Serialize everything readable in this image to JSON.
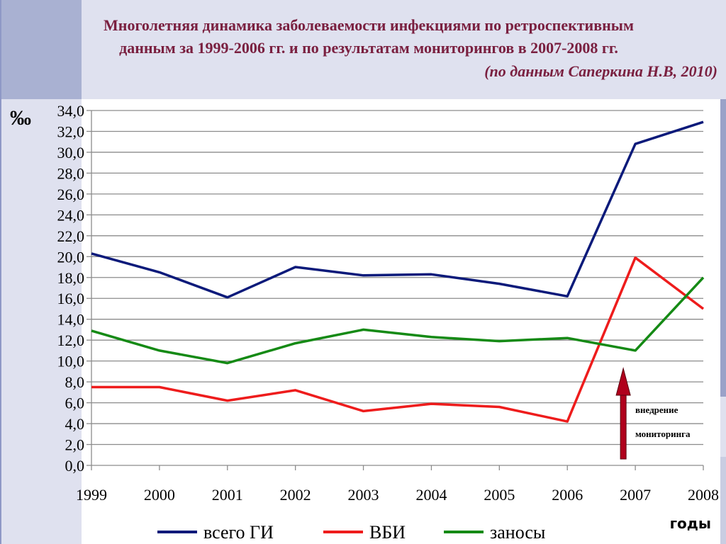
{
  "title_line1": "Многолетняя динамика заболеваемости инфекциями по ретроспективным",
  "title_line2": "данным за 1999-2006 гг. и по результатам мониторингов в 2007-2008 гг.",
  "source": "(по данным Саперкина Н.В, 2010)",
  "chart_data": {
    "type": "line",
    "ylabel": "‰",
    "xlabel": "годы",
    "ylim": [
      0,
      34
    ],
    "y_tick_step": 2,
    "grid": true,
    "legend_position": "bottom",
    "x": [
      "1999",
      "2000",
      "2001",
      "2002",
      "2003",
      "2004",
      "2005",
      "2006",
      "2007",
      "2008"
    ],
    "series": [
      {
        "name": "всего ГИ",
        "color": "#0b1a7a",
        "values": [
          20.3,
          18.5,
          16.1,
          19.0,
          18.2,
          18.3,
          17.4,
          16.2,
          30.8,
          32.9
        ]
      },
      {
        "name": "ВБИ",
        "color": "#ee1c1c",
        "values": [
          7.5,
          7.5,
          6.2,
          7.2,
          5.2,
          5.9,
          5.6,
          4.2,
          19.9,
          15.0
        ]
      },
      {
        "name": "заносы",
        "color": "#158a15",
        "values": [
          12.9,
          11.0,
          9.8,
          11.7,
          13.0,
          12.3,
          11.9,
          12.2,
          11.0,
          18.0
        ]
      }
    ],
    "annotation": {
      "line1": "внедрение",
      "line2": "мониторинга",
      "x": "2007",
      "arrow_color": "#b0001c"
    }
  }
}
